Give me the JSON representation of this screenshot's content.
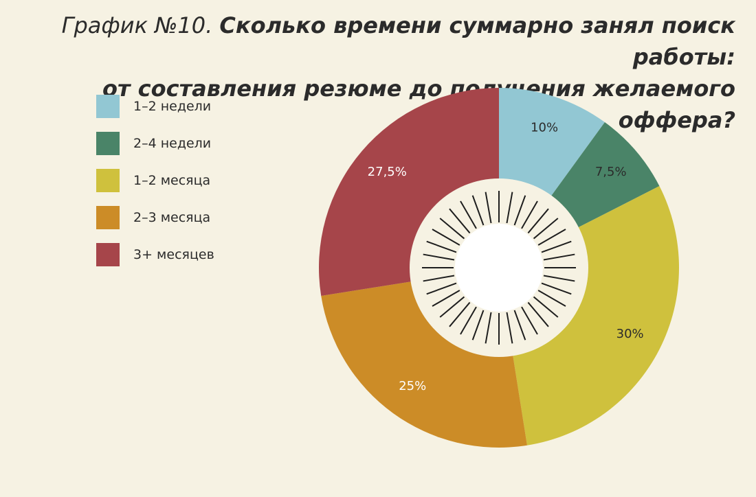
{
  "title": {
    "prefix": "График №10.",
    "main_line1": "Сколько времени суммарно занял поиск работы:",
    "main_line2": "от составления резюме до получения желаемого оффера?"
  },
  "chart_data": {
    "type": "pie",
    "categories": [
      "1–2 недели",
      "2–4 недели",
      "1–2 месяца",
      "2–3 месяца",
      "3+ месяцев"
    ],
    "values": [
      10,
      7.5,
      30,
      25,
      27.5
    ],
    "value_labels": [
      "10%",
      "7,5%",
      "30%",
      "25%",
      "27,5%"
    ],
    "colors": [
      "#92c7d3",
      "#4a8468",
      "#cfc13d",
      "#cc8c27",
      "#a6454a"
    ],
    "label_colors": [
      "#2b2b2b",
      "#2b2b2b",
      "#2b2b2b",
      "#ffffff",
      "#ffffff"
    ],
    "donut": true,
    "legend_position": "left"
  }
}
